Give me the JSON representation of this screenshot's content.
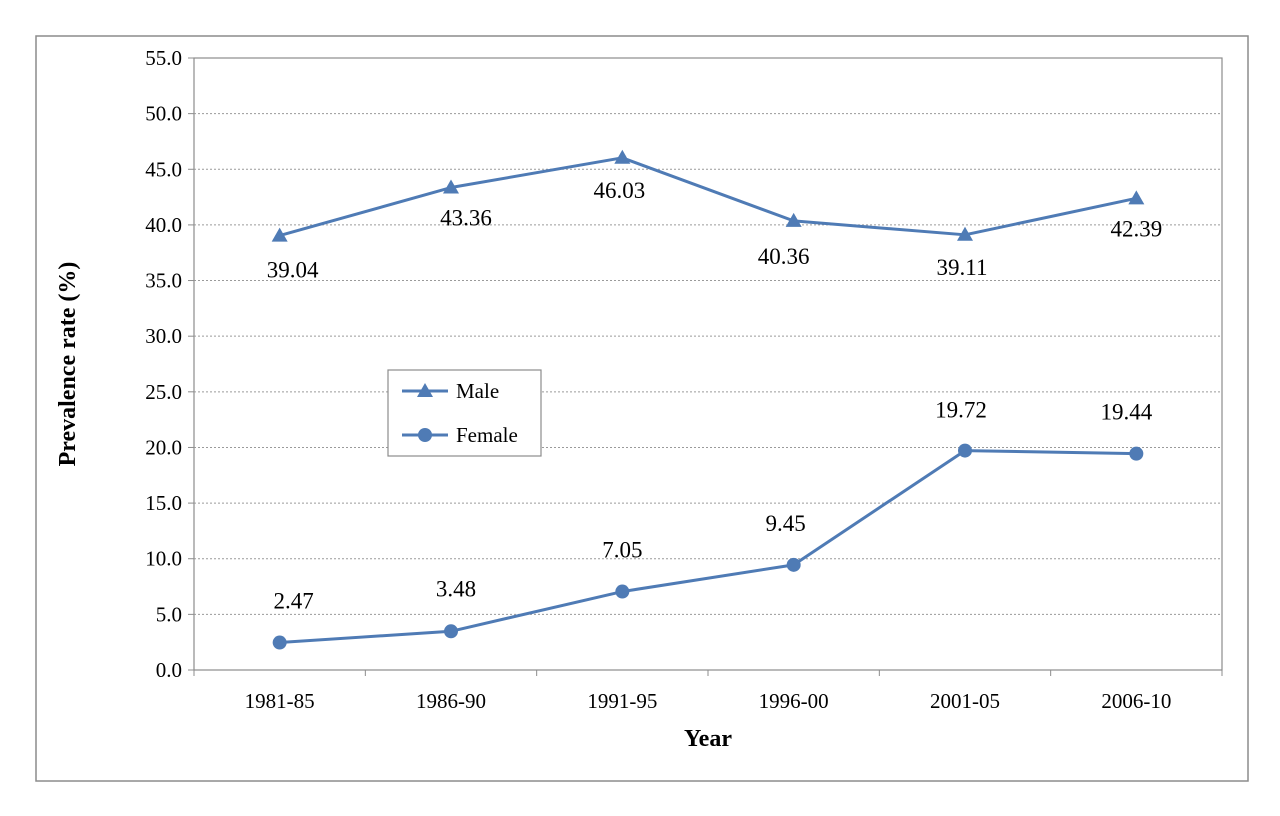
{
  "chart_data": {
    "type": "line",
    "title": "",
    "xlabel": "Year",
    "ylabel": "Prevalence rate (%)",
    "categories": [
      "1981-85",
      "1986-90",
      "1991-95",
      "1996-00",
      "2001-05",
      "2006-10"
    ],
    "ylim": [
      0,
      55
    ],
    "yticks": [
      "0.0",
      "5.0",
      "10.0",
      "15.0",
      "20.0",
      "25.0",
      "30.0",
      "35.0",
      "40.0",
      "45.0",
      "50.0",
      "55.0"
    ],
    "grid": true,
    "legend_position": "center-left",
    "series": [
      {
        "name": "Male",
        "marker": "triangle",
        "color": "#4f7bb5",
        "values": [
          39.04,
          43.36,
          46.03,
          40.36,
          39.11,
          42.39
        ],
        "labels": [
          "39.04",
          "43.36",
          "46.03",
          "40.36",
          "39.11",
          "42.39"
        ]
      },
      {
        "name": "Female",
        "marker": "circle",
        "color": "#4f7bb5",
        "values": [
          2.47,
          3.48,
          7.05,
          9.45,
          19.72,
          19.44
        ],
        "labels": [
          "2.47",
          "3.48",
          "7.05",
          "9.45",
          "19.72",
          "19.44"
        ]
      }
    ]
  }
}
